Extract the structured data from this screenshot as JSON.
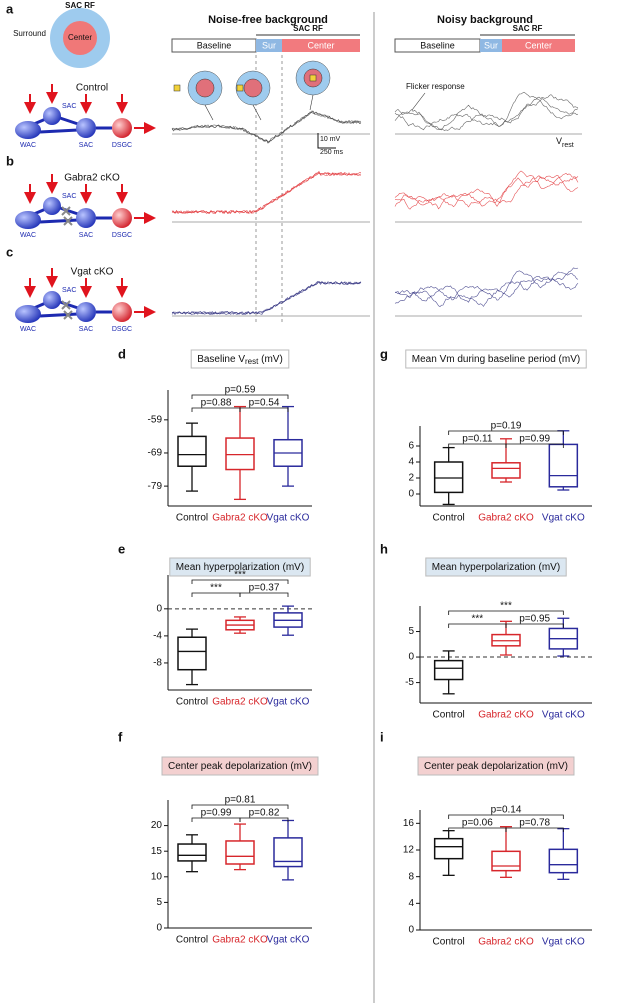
{
  "panel_labels": [
    "a",
    "b",
    "c",
    "d",
    "e",
    "f",
    "g",
    "h",
    "i"
  ],
  "rf_diagram": {
    "title": "SAC RF",
    "surround": "Surround",
    "center": "Center"
  },
  "columns": {
    "left": "Noise-free background",
    "right": "Noisy background"
  },
  "timeline": {
    "rf": "SAC RF",
    "baseline": "Baseline",
    "sur": "Sur",
    "center": "Center"
  },
  "rows": [
    "Control",
    "Gabra2 cKO",
    "Vgat cKO"
  ],
  "circuit": {
    "wac": "WAC",
    "sac": "SAC",
    "dsgc": "DSGC"
  },
  "annotations": {
    "flicker": "Flicker response",
    "scale_mv": "10 mV",
    "scale_ms": "250 ms",
    "vrest": "V",
    "vrest_sub": "rest"
  },
  "chart_data": [
    {
      "type": "box",
      "title": "Baseline V",
      "title_sub": "rest",
      "title_unit": " (mV)",
      "title_fill": "#ffffff",
      "categories": [
        "Control",
        "Gabra2 cKO",
        "Vgat cKO"
      ],
      "colors": [
        "#111111",
        "#d7262b",
        "#2a2a9c"
      ],
      "boxes": [
        [
          -80.5,
          -73,
          -69.5,
          -64,
          -60
        ],
        [
          -83,
          -74,
          -69.5,
          -64.5,
          -55
        ],
        [
          -79,
          -73,
          -69,
          -65,
          -55
        ]
      ],
      "ylim": [
        -85,
        -50
      ],
      "yticks": [
        -79,
        -69,
        -59
      ],
      "comparisons": [
        {
          "pair": [
            0,
            1
          ],
          "label": "p=0.88"
        },
        {
          "pair": [
            1,
            2
          ],
          "label": "p=0.54"
        },
        {
          "pair": [
            0,
            2
          ],
          "label": "p=0.59"
        }
      ]
    },
    {
      "type": "box",
      "title": "Mean hyperpolarization (mV)",
      "title_fill": "#dbe7f1",
      "zero_line": true,
      "categories": [
        "Control",
        "Gabra2 cKO",
        "Vgat cKO"
      ],
      "colors": [
        "#111111",
        "#d7262b",
        "#2a2a9c"
      ],
      "boxes": [
        [
          -11.2,
          -9,
          -6.3,
          -4.2,
          -3
        ],
        [
          -3.6,
          -3.1,
          -2.4,
          -1.7,
          -1.2
        ],
        [
          -3.9,
          -2.7,
          -1.7,
          -0.6,
          0.4
        ]
      ],
      "ylim": [
        -12,
        5
      ],
      "yticks": [
        -8,
        -4,
        0
      ],
      "comparisons": [
        {
          "pair": [
            0,
            1
          ],
          "label": "***"
        },
        {
          "pair": [
            1,
            2
          ],
          "label": "p=0.37"
        },
        {
          "pair": [
            0,
            2
          ],
          "label": "***"
        }
      ]
    },
    {
      "type": "box",
      "title": "Center peak depolarization (mV)",
      "title_fill": "#f3d0d0",
      "categories": [
        "Control",
        "Gabra2 cKO",
        "Vgat cKO"
      ],
      "colors": [
        "#111111",
        "#d7262b",
        "#2a2a9c"
      ],
      "boxes": [
        [
          11,
          13.1,
          14.2,
          16.4,
          18.2
        ],
        [
          11.4,
          12.5,
          14,
          17,
          20.3
        ],
        [
          9.4,
          12,
          13,
          17.6,
          21
        ]
      ],
      "ylim": [
        0,
        25
      ],
      "yticks": [
        0,
        5,
        10,
        15,
        20
      ],
      "comparisons": [
        {
          "pair": [
            0,
            1
          ],
          "label": "p=0.99"
        },
        {
          "pair": [
            0,
            2
          ],
          "label": "p=0.81"
        },
        {
          "pair": [
            1,
            2
          ],
          "label": "p=0.82"
        }
      ]
    },
    {
      "type": "box",
      "title": "Mean Vm during baseline period (mV)",
      "title_fill": "#ffffff",
      "categories": [
        "Control",
        "Gabra2 cKO",
        "Vgat cKO"
      ],
      "colors": [
        "#111111",
        "#d7262b",
        "#2a2a9c"
      ],
      "boxes": [
        [
          -1.3,
          0.2,
          2,
          4,
          5.8
        ],
        [
          1.5,
          2,
          3.2,
          3.9,
          6.9
        ],
        [
          0.5,
          0.9,
          2.3,
          6.2,
          7.9
        ]
      ],
      "ylim": [
        -1.5,
        8.5
      ],
      "yticks": [
        0,
        2,
        4,
        6
      ],
      "comparisons": [
        {
          "pair": [
            0,
            1
          ],
          "label": "p=0.11"
        },
        {
          "pair": [
            0,
            2
          ],
          "label": "p=0.19"
        },
        {
          "pair": [
            1,
            2
          ],
          "label": "p=0.99"
        }
      ]
    },
    {
      "type": "box",
      "title": "Mean hyperpolarization (mV)",
      "title_fill": "#dbe7f1",
      "zero_line": true,
      "categories": [
        "Control",
        "Gabra2 cKO",
        "Vgat cKO"
      ],
      "colors": [
        "#111111",
        "#d7262b",
        "#2a2a9c"
      ],
      "boxes": [
        [
          -7.2,
          -4.4,
          -2.2,
          -0.7,
          1.2
        ],
        [
          0.4,
          2.2,
          3.2,
          4.4,
          7
        ],
        [
          0.2,
          1.6,
          3.6,
          5.6,
          7.6
        ]
      ],
      "ylim": [
        -9,
        10
      ],
      "yticks": [
        -5,
        0,
        5
      ],
      "comparisons": [
        {
          "pair": [
            0,
            1
          ],
          "label": "***"
        },
        {
          "pair": [
            0,
            2
          ],
          "label": "***"
        },
        {
          "pair": [
            1,
            2
          ],
          "label": "p=0.95"
        }
      ]
    },
    {
      "type": "box",
      "title": "Center peak depolarization (mV)",
      "title_fill": "#f3d0d0",
      "categories": [
        "Control",
        "Gabra2 cKO",
        "Vgat cKO"
      ],
      "colors": [
        "#111111",
        "#d7262b",
        "#2a2a9c"
      ],
      "boxes": [
        [
          8.2,
          10.7,
          12.5,
          13.7,
          14.9
        ],
        [
          7.9,
          8.9,
          9.6,
          11.8,
          15.5
        ],
        [
          7.6,
          8.6,
          9.8,
          12.1,
          15.2
        ]
      ],
      "ylim": [
        0,
        18
      ],
      "yticks": [
        0,
        4,
        8,
        12,
        16
      ],
      "comparisons": [
        {
          "pair": [
            0,
            1
          ],
          "label": "p=0.06"
        },
        {
          "pair": [
            0,
            2
          ],
          "label": "p=0.14"
        },
        {
          "pair": [
            1,
            2
          ],
          "label": "p=0.78"
        }
      ]
    }
  ]
}
